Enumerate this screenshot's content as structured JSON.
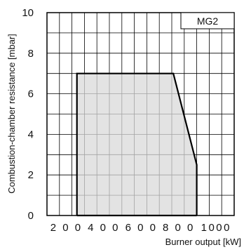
{
  "chart_data": {
    "type": "area",
    "title": "",
    "xlabel": "Burner output [kW]",
    "ylabel": "Combustion-chamber resistance [mbar]",
    "xlim": [
      100,
      1100
    ],
    "ylim": [
      0,
      10
    ],
    "x_grid_step": 66.667,
    "y_grid_step": 1,
    "grid": true,
    "x_ticks": [
      {
        "value": 200,
        "label": "2 0 0"
      },
      {
        "value": 400,
        "label": "4 0 0"
      },
      {
        "value": 600,
        "label": "6 0 0"
      },
      {
        "value": 800,
        "label": "8 0 0"
      },
      {
        "value": 1000,
        "label": "1000"
      }
    ],
    "y_ticks": [
      {
        "value": 0,
        "label": "0"
      },
      {
        "value": 2,
        "label": "2"
      },
      {
        "value": 4,
        "label": "4"
      },
      {
        "value": 6,
        "label": "6"
      },
      {
        "value": 8,
        "label": "8"
      },
      {
        "value": 10,
        "label": "10"
      }
    ],
    "series": [
      {
        "name": "MG2",
        "fill": "#d9d9d9",
        "stroke": "#000000",
        "points": [
          {
            "x": 260,
            "y": 0
          },
          {
            "x": 260,
            "y": 7
          },
          {
            "x": 775,
            "y": 7
          },
          {
            "x": 900,
            "y": 2.5
          },
          {
            "x": 900,
            "y": 0
          }
        ]
      }
    ],
    "legend_position": "top-right"
  }
}
